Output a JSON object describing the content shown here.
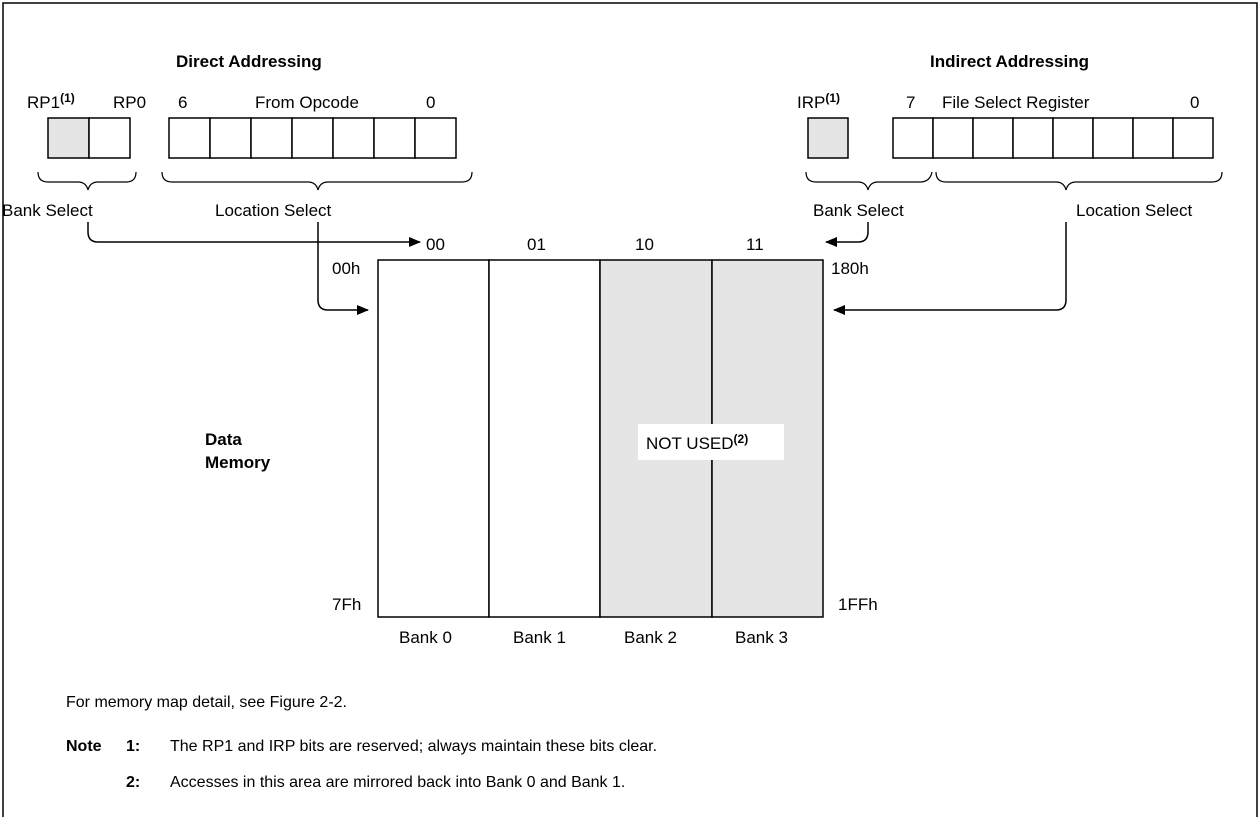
{
  "direct": {
    "title": "Direct Addressing",
    "rp1": "RP1",
    "rp1_sup": "(1)",
    "rp0": "RP0",
    "bit_high": "6",
    "field_label": "From Opcode",
    "bit_low": "0",
    "bank_select": "Bank Select",
    "location_select": "Location Select"
  },
  "indirect": {
    "title": "Indirect Addressing",
    "irp": "IRP",
    "irp_sup": "(1)",
    "bit_high": "7",
    "field_label": "File Select Register",
    "bit_low": "0",
    "bank_select": "Bank Select",
    "location_select": "Location Select"
  },
  "memory": {
    "label_line1": "Data",
    "label_line2": "Memory",
    "bank_codes": [
      "00",
      "01",
      "10",
      "11"
    ],
    "bank_names": [
      "Bank 0",
      "Bank 1",
      "Bank 2",
      "Bank 3"
    ],
    "addr_top_left": "00h",
    "addr_bottom_left": "7Fh",
    "addr_top_right": "180h",
    "addr_bottom_right": "1FFh",
    "not_used": "NOT USED",
    "not_used_sup": "(2)"
  },
  "notes": {
    "memory_map": "For memory map detail, see Figure 2-2.",
    "note_word": "Note",
    "n1_num": "1:",
    "n1_text": "The RP1 and IRP bits are reserved; always maintain these bits clear.",
    "n2_num": "2:",
    "n2_text": "Accesses in this area are mirrored back into Bank 0 and Bank 1."
  },
  "colors": {
    "shaded": "#e5e5e5",
    "line": "#000000"
  }
}
